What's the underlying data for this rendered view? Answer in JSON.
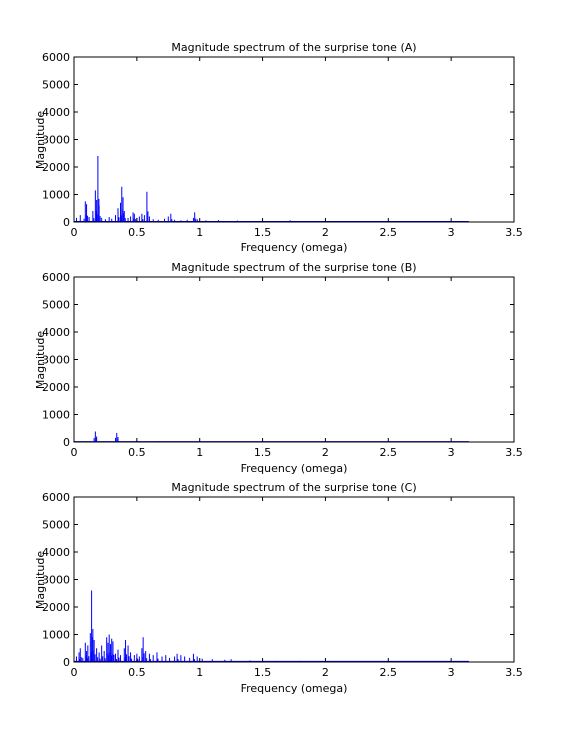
{
  "figure": {
    "background": "#ffffff",
    "line_color": "#0000ff"
  },
  "chart_data": [
    {
      "type": "line",
      "title": "Magnitude spectrum of the surprise tone (A)",
      "xlabel": "Frequency (omega)",
      "ylabel": "Magnitude",
      "xlim": [
        0,
        3.5
      ],
      "ylim": [
        0,
        6000
      ],
      "xticks": [
        0,
        0.5,
        1,
        1.5,
        2,
        2.5,
        3,
        3.5
      ],
      "xtick_labels": [
        "0",
        "0.5",
        "1",
        "1.5",
        "2",
        "2.5",
        "3",
        "3.5"
      ],
      "yticks": [
        0,
        1000,
        2000,
        3000,
        4000,
        5000,
        6000
      ],
      "ytick_labels": [
        "0",
        "1000",
        "2000",
        "3000",
        "4000",
        "5000",
        "6000"
      ],
      "grid": false,
      "series": [
        {
          "color": "#0000ff",
          "x_end": 3.1416,
          "baseline": 15,
          "peaks": [
            [
              0.02,
              150
            ],
            [
              0.05,
              250
            ],
            [
              0.08,
              120
            ],
            [
              0.09,
              750
            ],
            [
              0.1,
              650
            ],
            [
              0.12,
              180
            ],
            [
              0.15,
              400
            ],
            [
              0.17,
              1150
            ],
            [
              0.18,
              800
            ],
            [
              0.19,
              2400
            ],
            [
              0.2,
              600
            ],
            [
              0.22,
              150
            ],
            [
              0.25,
              100
            ],
            [
              0.28,
              180
            ],
            [
              0.3,
              120
            ],
            [
              0.33,
              250
            ],
            [
              0.35,
              500
            ],
            [
              0.37,
              700
            ],
            [
              0.38,
              1280
            ],
            [
              0.39,
              900
            ],
            [
              0.4,
              400
            ],
            [
              0.43,
              150
            ],
            [
              0.45,
              200
            ],
            [
              0.47,
              350
            ],
            [
              0.48,
              300
            ],
            [
              0.5,
              150
            ],
            [
              0.52,
              200
            ],
            [
              0.54,
              300
            ],
            [
              0.56,
              250
            ],
            [
              0.58,
              1100
            ],
            [
              0.6,
              200
            ],
            [
              0.63,
              100
            ],
            [
              0.67,
              80
            ],
            [
              0.72,
              120
            ],
            [
              0.75,
              200
            ],
            [
              0.77,
              300
            ],
            [
              0.8,
              80
            ],
            [
              0.85,
              60
            ],
            [
              0.9,
              80
            ],
            [
              0.95,
              150
            ],
            [
              0.96,
              350
            ],
            [
              0.98,
              100
            ],
            [
              1.05,
              60
            ],
            [
              1.15,
              70
            ],
            [
              1.3,
              50
            ],
            [
              1.5,
              40
            ],
            [
              1.72,
              60
            ],
            [
              2.0,
              30
            ],
            [
              2.5,
              25
            ],
            [
              3.0,
              20
            ]
          ]
        }
      ]
    },
    {
      "type": "line",
      "title": "Magnitude spectrum of the surprise tone (B)",
      "xlabel": "Frequency (omega)",
      "ylabel": "Magnitude",
      "xlim": [
        0,
        3.5
      ],
      "ylim": [
        0,
        6000
      ],
      "xticks": [
        0,
        0.5,
        1,
        1.5,
        2,
        2.5,
        3,
        3.5
      ],
      "xtick_labels": [
        "0",
        "0.5",
        "1",
        "1.5",
        "2",
        "2.5",
        "3",
        "3.5"
      ],
      "yticks": [
        0,
        1000,
        2000,
        3000,
        4000,
        5000,
        6000
      ],
      "ytick_labels": [
        "0",
        "1000",
        "2000",
        "3000",
        "4000",
        "5000",
        "6000"
      ],
      "grid": false,
      "series": [
        {
          "color": "#0000ff",
          "x_end": 3.1416,
          "baseline": 10,
          "peaks": [
            [
              0.16,
              150
            ],
            [
              0.17,
              380
            ],
            [
              0.18,
              200
            ],
            [
              0.33,
              150
            ],
            [
              0.34,
              330
            ],
            [
              0.35,
              180
            ],
            [
              0.5,
              40
            ],
            [
              0.67,
              30
            ],
            [
              1.0,
              20
            ]
          ]
        }
      ]
    },
    {
      "type": "line",
      "title": "Magnitude spectrum of the surprise tone (C)",
      "xlabel": "Frequency (omega)",
      "ylabel": "Magnitude",
      "xlim": [
        0,
        3.5
      ],
      "ylim": [
        0,
        6000
      ],
      "xticks": [
        0,
        0.5,
        1,
        1.5,
        2,
        2.5,
        3,
        3.5
      ],
      "xtick_labels": [
        "0",
        "0.5",
        "1",
        "1.5",
        "2",
        "2.5",
        "3",
        "3.5"
      ],
      "yticks": [
        0,
        1000,
        2000,
        3000,
        4000,
        5000,
        6000
      ],
      "ytick_labels": [
        "0",
        "1000",
        "2000",
        "3000",
        "4000",
        "5000",
        "6000"
      ],
      "grid": false,
      "series": [
        {
          "color": "#0000ff",
          "x_end": 3.1416,
          "baseline": 20,
          "peaks": [
            [
              0.02,
              200
            ],
            [
              0.04,
              350
            ],
            [
              0.05,
              500
            ],
            [
              0.07,
              150
            ],
            [
              0.09,
              700
            ],
            [
              0.1,
              400
            ],
            [
              0.11,
              600
            ],
            [
              0.13,
              1050
            ],
            [
              0.14,
              2600
            ],
            [
              0.15,
              1200
            ],
            [
              0.16,
              800
            ],
            [
              0.18,
              500
            ],
            [
              0.2,
              350
            ],
            [
              0.22,
              600
            ],
            [
              0.24,
              400
            ],
            [
              0.26,
              900
            ],
            [
              0.27,
              700
            ],
            [
              0.28,
              1000
            ],
            [
              0.29,
              650
            ],
            [
              0.3,
              850
            ],
            [
              0.31,
              750
            ],
            [
              0.33,
              300
            ],
            [
              0.35,
              450
            ],
            [
              0.37,
              250
            ],
            [
              0.4,
              500
            ],
            [
              0.41,
              800
            ],
            [
              0.43,
              600
            ],
            [
              0.45,
              350
            ],
            [
              0.48,
              250
            ],
            [
              0.5,
              300
            ],
            [
              0.52,
              200
            ],
            [
              0.54,
              500
            ],
            [
              0.55,
              900
            ],
            [
              0.57,
              400
            ],
            [
              0.6,
              300
            ],
            [
              0.63,
              250
            ],
            [
              0.66,
              350
            ],
            [
              0.7,
              200
            ],
            [
              0.73,
              250
            ],
            [
              0.76,
              150
            ],
            [
              0.8,
              200
            ],
            [
              0.82,
              300
            ],
            [
              0.85,
              250
            ],
            [
              0.88,
              200
            ],
            [
              0.92,
              150
            ],
            [
              0.95,
              300
            ],
            [
              0.98,
              200
            ],
            [
              1.02,
              120
            ],
            [
              1.1,
              100
            ],
            [
              1.2,
              80
            ],
            [
              1.25,
              100
            ],
            [
              1.4,
              60
            ],
            [
              1.5,
              80
            ],
            [
              1.6,
              40
            ],
            [
              1.8,
              40
            ],
            [
              2.1,
              30
            ],
            [
              2.5,
              25
            ],
            [
              3.0,
              20
            ]
          ]
        }
      ]
    }
  ]
}
